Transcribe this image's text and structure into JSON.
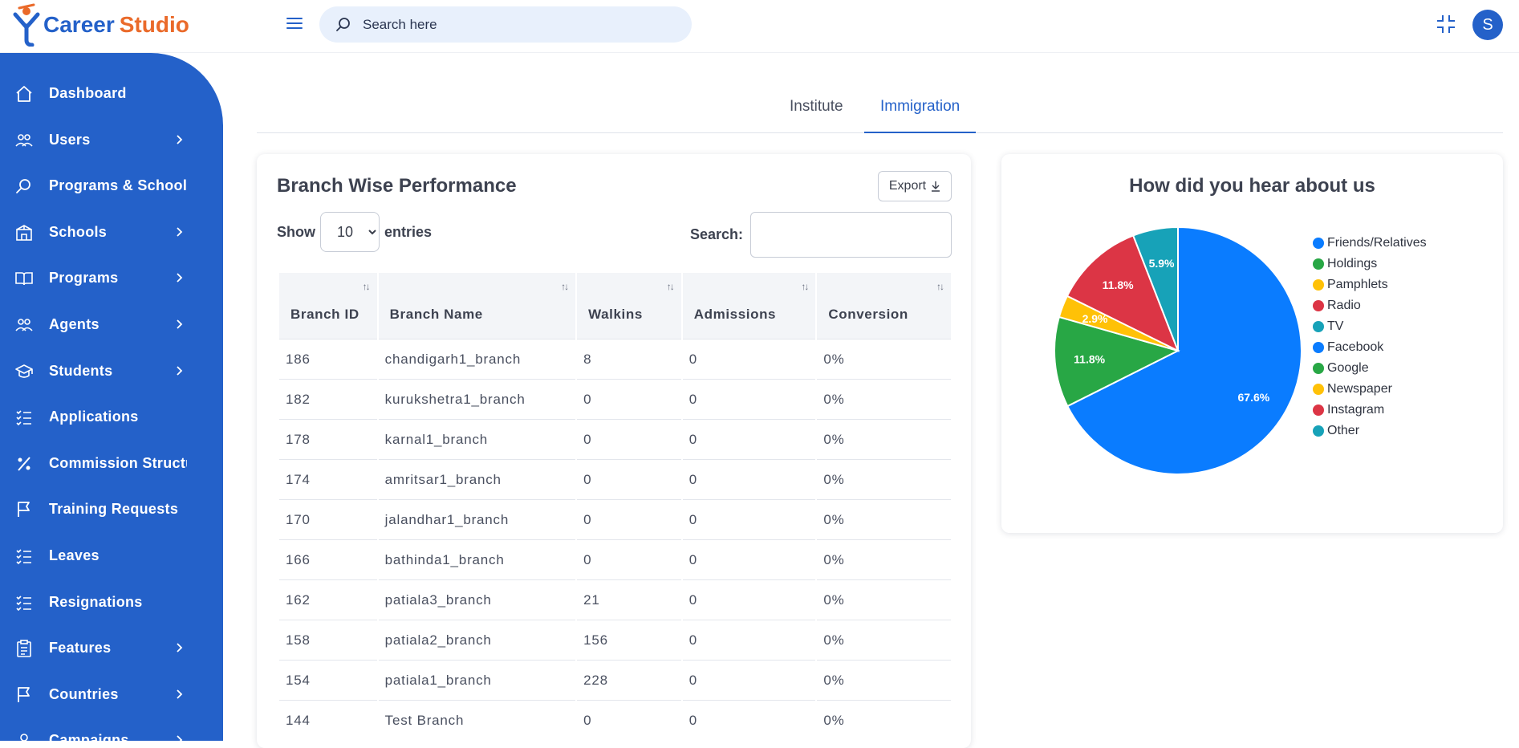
{
  "header": {
    "brand_part1": "Career",
    "brand_part2": "Studio",
    "search_placeholder": "Search here",
    "avatar_initial": "S"
  },
  "sidebar": {
    "items": [
      {
        "label": "Dashboard",
        "icon": "home-icon",
        "has_arrow": false
      },
      {
        "label": "Users",
        "icon": "users-icon",
        "has_arrow": true
      },
      {
        "label": "Programs & Schools",
        "icon": "search-icon",
        "has_arrow": false
      },
      {
        "label": "Schools",
        "icon": "school-icon",
        "has_arrow": true
      },
      {
        "label": "Programs",
        "icon": "book-icon",
        "has_arrow": true
      },
      {
        "label": "Agents",
        "icon": "agents-icon",
        "has_arrow": true
      },
      {
        "label": "Students",
        "icon": "graduation-cap-icon",
        "has_arrow": true
      },
      {
        "label": "Applications",
        "icon": "checklist-icon",
        "has_arrow": false
      },
      {
        "label": "Commission Structure",
        "icon": "percent-icon",
        "has_arrow": false
      },
      {
        "label": "Training Requests",
        "icon": "flag-icon",
        "has_arrow": false
      },
      {
        "label": "Leaves",
        "icon": "checklist-icon",
        "has_arrow": false
      },
      {
        "label": "Resignations",
        "icon": "checklist-icon",
        "has_arrow": false
      },
      {
        "label": "Features",
        "icon": "clipboard-icon",
        "has_arrow": true
      },
      {
        "label": "Countries",
        "icon": "flag-icon",
        "has_arrow": true
      },
      {
        "label": "Campaigns",
        "icon": "user-icon",
        "has_arrow": true
      }
    ]
  },
  "tabs": [
    {
      "label": "Institute",
      "active": false
    },
    {
      "label": "Immigration",
      "active": true
    }
  ],
  "branch_table": {
    "title": "Branch Wise Performance",
    "export_label": "Export",
    "show_label": "Show",
    "entries_label": "entries",
    "entries_value": "10",
    "search_label": "Search:",
    "columns": [
      "Branch ID",
      "Branch Name",
      "Walkins",
      "Admissions",
      "Conversion"
    ],
    "rows": [
      [
        "186",
        "chandigarh1_branch",
        "8",
        "0",
        "0%"
      ],
      [
        "182",
        "kurukshetra1_branch",
        "0",
        "0",
        "0%"
      ],
      [
        "178",
        "karnal1_branch",
        "0",
        "0",
        "0%"
      ],
      [
        "174",
        "amritsar1_branch",
        "0",
        "0",
        "0%"
      ],
      [
        "170",
        "jalandhar1_branch",
        "0",
        "0",
        "0%"
      ],
      [
        "166",
        "bathinda1_branch",
        "0",
        "0",
        "0%"
      ],
      [
        "162",
        "patiala3_branch",
        "21",
        "0",
        "0%"
      ],
      [
        "158",
        "patiala2_branch",
        "156",
        "0",
        "0%"
      ],
      [
        "154",
        "patiala1_branch",
        "228",
        "0",
        "0%"
      ],
      [
        "144",
        "Test Branch",
        "0",
        "0",
        "0%"
      ]
    ]
  },
  "chart_data": {
    "type": "pie",
    "title": "How did you hear about us",
    "legend_position": "right",
    "categories": [
      "Friends/Relatives",
      "Holdings",
      "Pamphlets",
      "Radio",
      "TV",
      "Facebook",
      "Google",
      "Newspaper",
      "Instagram",
      "Other"
    ],
    "values": [
      67.6,
      11.8,
      2.9,
      11.8,
      5.9,
      0,
      0,
      0,
      0,
      0
    ],
    "data_labels": [
      "67.6%",
      "11.8%",
      "2.9%",
      "11.8%",
      "5.9%",
      "",
      "",
      "",
      "",
      ""
    ],
    "colors": [
      "#0a7cff",
      "#28a745",
      "#ffc107",
      "#dc3545",
      "#17a2b8",
      "#0a7cff",
      "#28a745",
      "#ffc107",
      "#dc3545",
      "#17a2b8"
    ]
  }
}
